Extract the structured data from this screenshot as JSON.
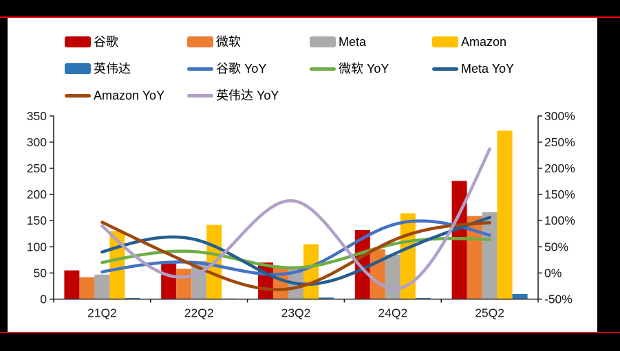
{
  "frame": {
    "background": "#000000",
    "accent_line_color": "#FF0000",
    "panel_color": "#FFFFFF"
  },
  "chart_data": {
    "type": "combo-bar-line",
    "title": "",
    "categories": [
      "21Q2",
      "22Q2",
      "23Q2",
      "24Q2",
      "25Q2"
    ],
    "bar_series": [
      {
        "name": "谷歌",
        "color": "#C00000",
        "values": [
          55,
          68,
          70,
          132,
          226
        ]
      },
      {
        "name": "微软",
        "color": "#ED7D31",
        "values": [
          42,
          58,
          63,
          95,
          159
        ]
      },
      {
        "name": "Meta",
        "color": "#ABABAB",
        "values": [
          47,
          73,
          61,
          85,
          166
        ]
      },
      {
        "name": "Amazon",
        "color": "#FFC000",
        "values": [
          130,
          142,
          105,
          164,
          322
        ]
      },
      {
        "name": "英伟达",
        "color": "#2E75B6",
        "values": [
          2,
          1,
          3,
          2,
          10
        ]
      }
    ],
    "line_series": [
      {
        "name": "谷歌 YoY",
        "color": "#4472C4",
        "values_pct": [
          2,
          19,
          2,
          92,
          72
        ]
      },
      {
        "name": "微软 YoY",
        "color": "#70AD47",
        "values_pct": [
          20,
          40,
          10,
          55,
          64
        ]
      },
      {
        "name": "Meta YoY",
        "color": "#255E91",
        "values_pct": [
          40,
          62,
          -20,
          35,
          106
        ]
      },
      {
        "name": "Amazon YoY",
        "color": "#9E480E",
        "values_pct": [
          97,
          10,
          -28,
          62,
          96
        ]
      },
      {
        "name": "英伟达 YoY",
        "color": "#B1A0C7",
        "values_pct": [
          90,
          0,
          137,
          -30,
          237
        ]
      }
    ],
    "left_axis": {
      "ticks": [
        "350",
        "300",
        "250",
        "200",
        "150",
        "100",
        "50",
        "0"
      ],
      "min": 0,
      "max": 350
    },
    "right_axis": {
      "ticks": [
        "300%",
        "250%",
        "200%",
        "150%",
        "100%",
        "50%",
        "0%",
        "-50%"
      ],
      "min": -50,
      "max": 300
    },
    "legend_position": "top",
    "grid": false,
    "line_smoothing": "cubic-spline"
  }
}
